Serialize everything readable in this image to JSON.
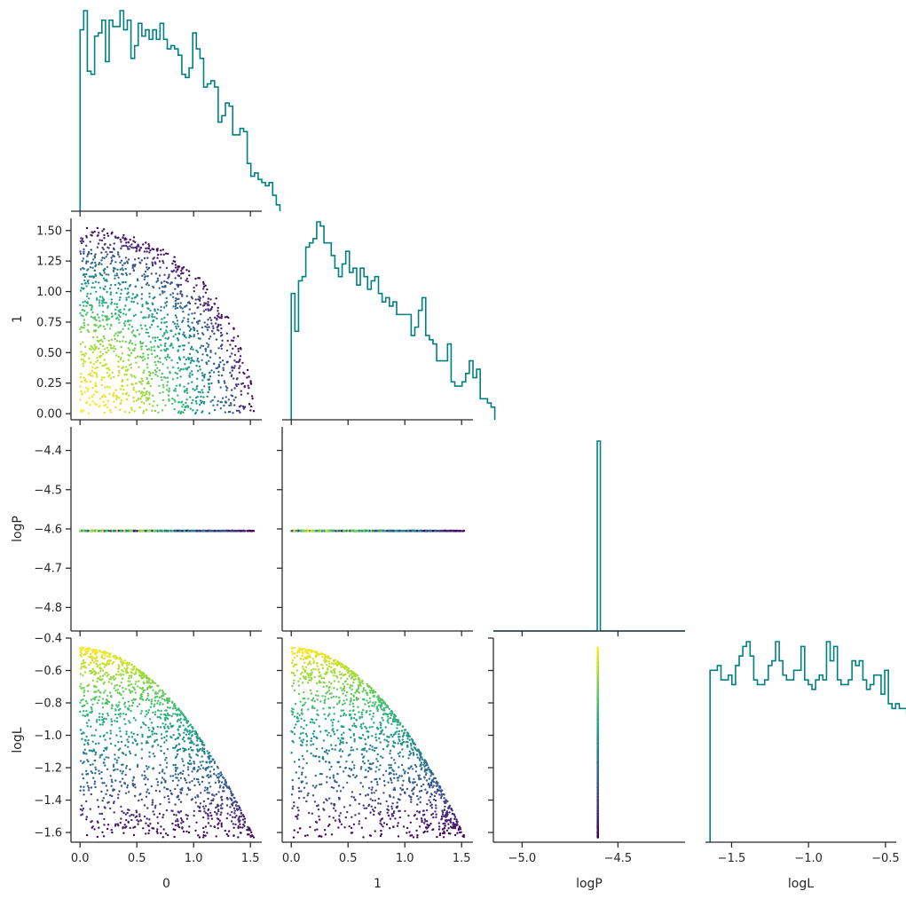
{
  "chart_data": {
    "type": "pairplot-corner",
    "variables": [
      "0",
      "1",
      "logP",
      "logL"
    ],
    "n_points": 1500,
    "description_of_data": "x0, x1 uniform-ish inside quarter disk of radius ~1.53; logL = -0.46 - 0.5*(x0^2+x1^2); logP constant -4.605",
    "constant_logP": -4.605,
    "histogram_color": "#008080",
    "colormap": "viridis",
    "color_variable": "logL",
    "axes": {
      "x0": {
        "range": [
          -0.08,
          1.6
        ],
        "ticks": [
          0.0,
          0.5,
          1.0,
          1.5
        ],
        "tick_labels": [
          "0.0",
          "0.5",
          "1.0",
          "1.5"
        ],
        "label": "0"
      },
      "x1": {
        "range": [
          -0.08,
          1.6
        ],
        "ticks": [
          0.0,
          0.5,
          1.0,
          1.5
        ],
        "tick_labels": [
          "0.0",
          "0.5",
          "1.0",
          "1.5"
        ],
        "label": "1"
      },
      "x1_as_y": {
        "range": [
          -0.05,
          1.6
        ],
        "ticks": [
          0.0,
          0.25,
          0.5,
          0.75,
          1.0,
          1.25,
          1.5
        ],
        "tick_labels": [
          "0.00",
          "0.25",
          "0.50",
          "0.75",
          "1.00",
          "1.25",
          "1.50"
        ],
        "label": "1"
      },
      "logP_as_y": {
        "range": [
          -4.86,
          -4.34
        ],
        "ticks": [
          -4.8,
          -4.7,
          -4.6,
          -4.5,
          -4.4
        ],
        "tick_labels": [
          "−4.8",
          "−4.7",
          "−4.6",
          "−4.5",
          "−4.4"
        ],
        "label": "logP"
      },
      "logP_as_x": {
        "range": [
          -5.15,
          -4.15
        ],
        "ticks": [
          -5.0,
          -4.5
        ],
        "tick_labels": [
          "−5.0",
          "−4.5"
        ],
        "label": "logP"
      },
      "logL_as_y": {
        "range": [
          -1.66,
          -0.4
        ],
        "ticks": [
          -1.6,
          -1.4,
          -1.2,
          -1.0,
          -0.8,
          -0.6,
          -0.4
        ],
        "tick_labels": [
          "−1.6",
          "−1.4",
          "−1.2",
          "−1.0",
          "−0.8",
          "−0.6",
          "−0.4"
        ],
        "label": "logL"
      },
      "logL_as_x": {
        "range": [
          -1.67,
          -0.43
        ],
        "ticks": [
          -1.5,
          -1.0,
          -0.5
        ],
        "tick_labels": [
          "−1.5",
          "−1.0",
          "−0.5"
        ],
        "label": "logL"
      }
    },
    "histograms": {
      "x0": {
        "bin_start": 0.0,
        "bin_width": 0.032,
        "counts": [
          57,
          63,
          44,
          43,
          55,
          56,
          60,
          47,
          60,
          58,
          58,
          63,
          57,
          60,
          48,
          52,
          59,
          55,
          57,
          54,
          57,
          54,
          59,
          54,
          51,
          52,
          51,
          49,
          43,
          42,
          45,
          56,
          51,
          48,
          39,
          40,
          41,
          39,
          28,
          30,
          34,
          33,
          24,
          24,
          26,
          25,
          15,
          11,
          12,
          10,
          9,
          8,
          9,
          5,
          2
        ]
      },
      "x1": {
        "bin_start": 0.0,
        "bin_width": 0.032,
        "counts": [
          30,
          21,
          33,
          34,
          41,
          42,
          43,
          47,
          46,
          42,
          42,
          39,
          36,
          34,
          37,
          40,
          35,
          36,
          32,
          36,
          34,
          31,
          33,
          34,
          30,
          28,
          29,
          27,
          28,
          25,
          25,
          25,
          25,
          20,
          22,
          26,
          29,
          20,
          19,
          18,
          14,
          14,
          14,
          18,
          9,
          8,
          8,
          9,
          11,
          14,
          10,
          12,
          5,
          5,
          4,
          3
        ]
      },
      "logP": {
        "peak_center": -4.6,
        "peak_halfwidth": 0.008,
        "peak_height_frac": 1.0
      },
      "logL": {
        "bin_start": -1.64,
        "bin_width": 0.02365,
        "counts": [
          36,
          36,
          37,
          34,
          34,
          35,
          33,
          37,
          39,
          41,
          42,
          39,
          34,
          33,
          33,
          34,
          37,
          38,
          42,
          38,
          35,
          34,
          34,
          36,
          36,
          41,
          34,
          33,
          32,
          34,
          35,
          34,
          42,
          38,
          41,
          34,
          33,
          33,
          34,
          38,
          37,
          38,
          34,
          32,
          33,
          35,
          35,
          31,
          36,
          29,
          28,
          29,
          28,
          28,
          27
        ]
      }
    },
    "scatter": {
      "point_radius_px": 1.2,
      "samples": 1500,
      "radius_max": 1.53,
      "logL_offset": -0.46,
      "logL_scale": 0.5
    }
  }
}
